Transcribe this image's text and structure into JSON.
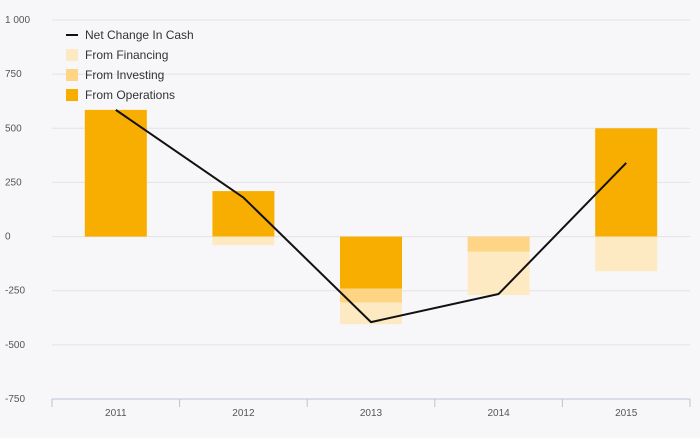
{
  "chart_data": {
    "type": "bar",
    "stacked": true,
    "title": "",
    "xlabel": "",
    "ylabel": "",
    "ylim": [
      -750,
      1000
    ],
    "yticks": [
      1000,
      750,
      500,
      250,
      0,
      -250,
      -500,
      -750
    ],
    "ytick_labels": [
      "1 000",
      "750",
      "500",
      "250",
      "0",
      "-250",
      "-500",
      "-750"
    ],
    "categories": [
      "2011",
      "2012",
      "2013",
      "2014",
      "2015"
    ],
    "series": [
      {
        "name": "From Operations",
        "kind": "bar",
        "color": "#f8ae00",
        "values": [
          585,
          210,
          -240,
          0,
          500
        ]
      },
      {
        "name": "From Investing",
        "kind": "bar",
        "color": "#fed584",
        "values": [
          0,
          0,
          -65,
          -70,
          0
        ]
      },
      {
        "name": "From Financing",
        "kind": "bar",
        "color": "#feeac2",
        "values": [
          0,
          -40,
          -100,
          -200,
          -160
        ]
      },
      {
        "name": "Net Change In Cash",
        "kind": "line",
        "color": "#111111",
        "values": [
          585,
          180,
          -395,
          -265,
          340
        ]
      }
    ],
    "legend": {
      "placement": "top-left",
      "entries": [
        "Net Change In Cash",
        "From Financing",
        "From Investing",
        "From Operations"
      ]
    },
    "grid": true
  },
  "colors": {
    "background": "#f7f7f9",
    "grid": "#e3e3e6",
    "axis": "#b9c3d6",
    "tick_text": "#555555"
  }
}
